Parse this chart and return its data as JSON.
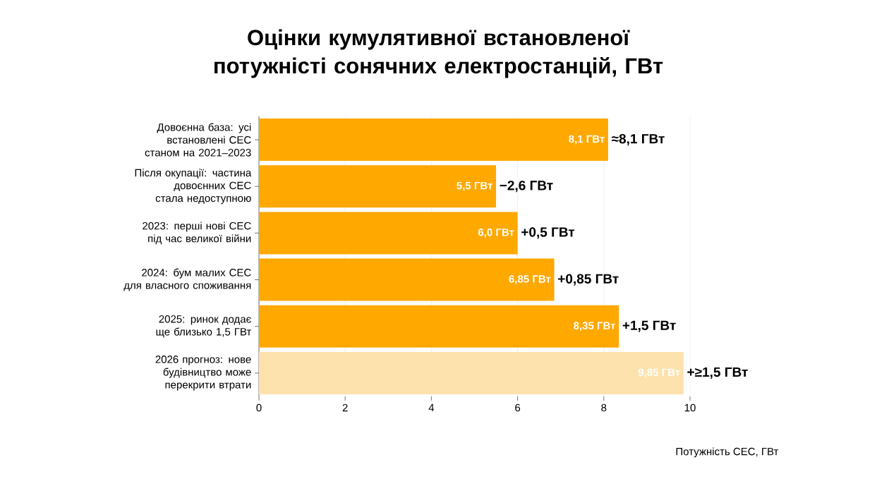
{
  "chart_data": {
    "type": "bar",
    "orientation": "horizontal",
    "title": "Оцінки кумулятивної встановленої потужністі сонячних електростанцій, ГВт",
    "xlabel": "Потужність СЕС, ГВт",
    "categories": [
      "Довоєнна база: усі встановлені СЕС станом на 2021–2023",
      "Після окупації: частина довоєнних СЕС стала недоступною",
      "2023: перші нові СЕС під час великої війни",
      "2024: бум малих СЕС для власного споживання",
      "2025: ринок додає ще близько 1,5 ГВт",
      "2026 прогноз: нове будівництво може перекрити втрати"
    ],
    "values": [
      8.1,
      5.5,
      6.0,
      6.85,
      8.35,
      9.85
    ],
    "colors": [
      "#ffa800",
      "#ffa800",
      "#ffa800",
      "#ffa800",
      "#ffa800",
      "#fde2ae"
    ],
    "value_labels": [
      "8,1 ГВт",
      "5,5 ГВт",
      "6,0 ГВт",
      "6,85 ГВт",
      "8,35 ГВт",
      "9,85 ГВт"
    ],
    "annotations": [
      {
        "text": "≈8,1 ГВт",
        "x": 8.1,
        "y": "Довоєнна база: усі встановлені СЕС станом на 2021–2023"
      },
      {
        "text": "−2,6 ГВт",
        "x": 5.5,
        "y": "Після окупації: частина довоєнних СЕС стала недоступною"
      },
      {
        "text": "+0,5 ГВт",
        "x": 6.0,
        "y": "2023: перші нові СЕС під час великої війни"
      },
      {
        "text": "+0,85 ГВт",
        "x": 6.85,
        "y": "2024: бум малих СЕС для власного споживання"
      },
      {
        "text": "+1,5 ГВт",
        "x": 8.35,
        "y": "2025: ринок додає ще близько 1,5 ГВт"
      },
      {
        "text": "+≥1,5 ГВт",
        "x": 9.85,
        "y": "2026 прогноз: нове будівництво може перекрити втрати"
      }
    ],
    "xlim": [
      0,
      10
    ],
    "xticks": [
      0,
      2,
      4,
      6,
      8,
      10
    ],
    "grid": "x"
  }
}
